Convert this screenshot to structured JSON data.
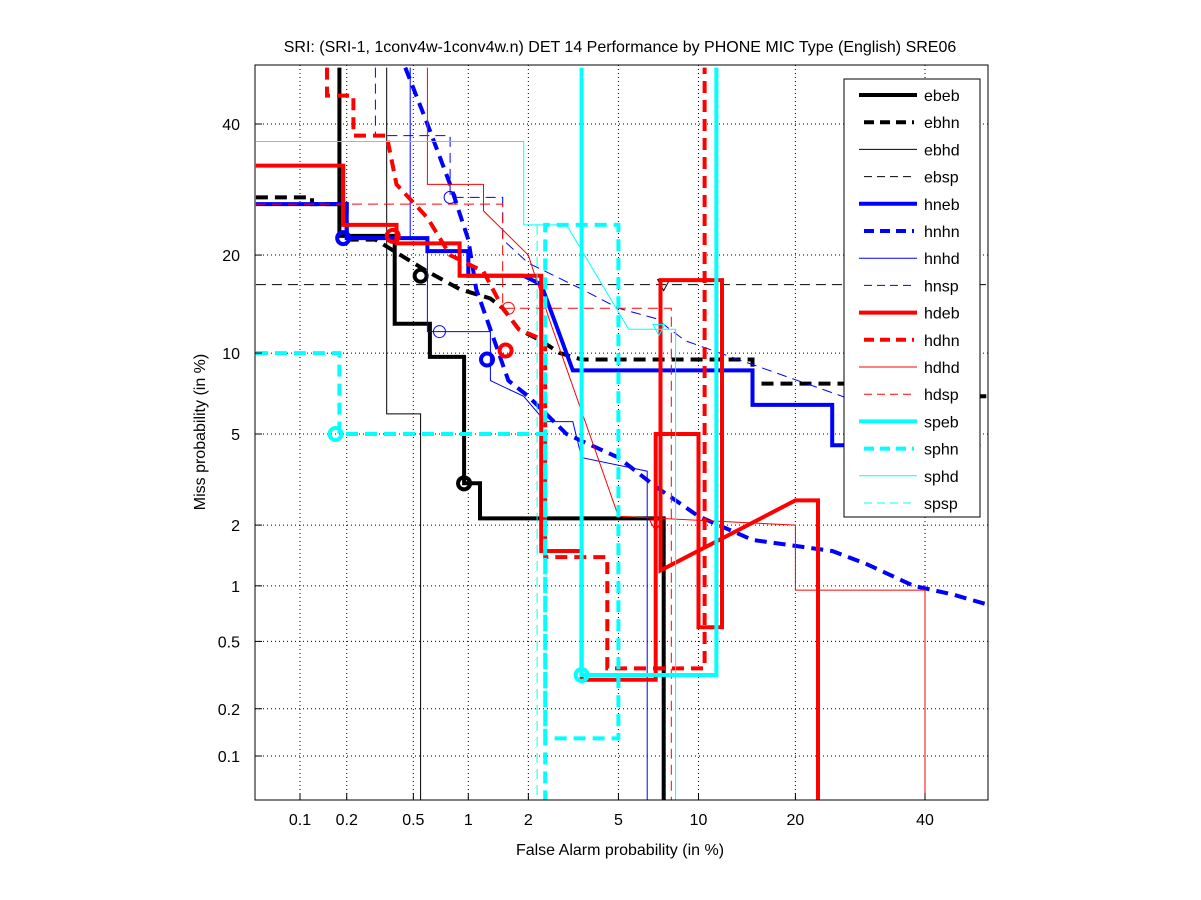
{
  "chart_data": {
    "type": "line",
    "title": "SRI: (SRI-1, 1conv4w-1conv4w.n) DET 14 Performance by PHONE MIC Type (English) SRE06",
    "xlabel": "False Alarm probability (in %)",
    "ylabel": "Miss probability (in %)",
    "xscale": "probit",
    "yscale": "probit",
    "xlim": [
      0.05,
      51
    ],
    "ylim": [
      0.05,
      50
    ],
    "xticks": [
      0.1,
      0.2,
      0.5,
      1,
      2,
      5,
      10,
      20,
      40
    ],
    "xtick_labels": [
      "0.1",
      "0.2",
      "0.5",
      "1",
      "2",
      "5",
      "10",
      "20",
      "40"
    ],
    "yticks": [
      0.1,
      0.2,
      0.5,
      1,
      2,
      5,
      10,
      20,
      40
    ],
    "ytick_labels": [
      "0.1",
      "0.2",
      "0.5",
      "1",
      "2",
      "5",
      "10",
      "20",
      "40"
    ],
    "grid": true,
    "legend_position": "top-right",
    "reference_line": {
      "miss": 16.5,
      "style": "dashed",
      "color": "#000000"
    },
    "series": [
      {
        "name": "ebeb",
        "color": "#000000",
        "style": "solid",
        "width": 4,
        "points": [
          [
            0.18,
            50
          ],
          [
            0.18,
            22.5
          ],
          [
            0.39,
            22.5
          ],
          [
            0.39,
            12.5
          ],
          [
            0.62,
            12.5
          ],
          [
            0.62,
            9.7
          ],
          [
            0.95,
            9.7
          ],
          [
            0.95,
            3.1
          ],
          [
            1.15,
            3.1
          ],
          [
            1.15,
            2.15
          ],
          [
            5.5,
            2.15
          ],
          [
            7.5,
            2.15
          ],
          [
            7.5,
            0.05
          ]
        ],
        "marker": [
          0.95,
          3.1
        ],
        "marker_style": "circle"
      },
      {
        "name": "ebhn",
        "color": "#000000",
        "style": "dashed",
        "width": 4,
        "points": [
          [
            0.05,
            28
          ],
          [
            0.12,
            28
          ],
          [
            0.12,
            27
          ],
          [
            0.2,
            27
          ],
          [
            0.2,
            22
          ],
          [
            0.3,
            22
          ],
          [
            0.6,
            18
          ],
          [
            0.9,
            16
          ],
          [
            1.3,
            15
          ],
          [
            1.5,
            14
          ],
          [
            1.8,
            12
          ],
          [
            2.3,
            11
          ],
          [
            2.8,
            10
          ],
          [
            3.5,
            9.5
          ],
          [
            10,
            9.5
          ],
          [
            15,
            9.5
          ],
          [
            15,
            7.8
          ],
          [
            45,
            7.8
          ],
          [
            45,
            7
          ],
          [
            51,
            7
          ]
        ],
        "marker": [
          0.55,
          17.5
        ],
        "marker_style": "circle"
      },
      {
        "name": "ebhd",
        "color": "#000000",
        "style": "solid",
        "width": 1,
        "points": [
          [
            0.35,
            50
          ],
          [
            0.35,
            6
          ],
          [
            0.55,
            6
          ],
          [
            0.55,
            0.05
          ]
        ]
      },
      {
        "name": "ebsp",
        "color": "#000000",
        "style": "dashed",
        "width": 1,
        "points": [
          [
            0.05,
            16.5
          ],
          [
            51,
            16.5
          ]
        ],
        "marker": [
          7.5,
          16.5
        ],
        "marker_style": "triangle"
      },
      {
        "name": "hneb",
        "color": "#0000ff",
        "style": "solid",
        "width": 4,
        "points": [
          [
            0.05,
            27
          ],
          [
            0.2,
            27
          ],
          [
            0.2,
            22.2
          ],
          [
            0.6,
            22.2
          ],
          [
            0.6,
            20.5
          ],
          [
            1.0,
            20.5
          ],
          [
            1.0,
            17.5
          ],
          [
            1.9,
            17.5
          ],
          [
            2.3,
            16.5
          ],
          [
            3.2,
            8.7
          ],
          [
            15,
            8.7
          ],
          [
            15,
            6.5
          ],
          [
            25,
            6.5
          ],
          [
            25,
            4.5
          ],
          [
            30,
            4.5
          ]
        ],
        "marker": [
          0.19,
          22.2
        ],
        "marker_style": "circle"
      },
      {
        "name": "hnhn",
        "color": "#0000ff",
        "style": "dashed",
        "width": 4,
        "points": [
          [
            0.45,
            50
          ],
          [
            0.6,
            40
          ],
          [
            0.8,
            30
          ],
          [
            1.0,
            22
          ],
          [
            1.1,
            16
          ],
          [
            1.3,
            12
          ],
          [
            1.6,
            8
          ],
          [
            2.0,
            7
          ],
          [
            3.0,
            5
          ],
          [
            5.0,
            4
          ],
          [
            7.0,
            3
          ],
          [
            10,
            2.2
          ],
          [
            15,
            1.7
          ],
          [
            25,
            1.5
          ],
          [
            30,
            1.3
          ],
          [
            38,
            1.0
          ],
          [
            45,
            0.9
          ],
          [
            51,
            0.8
          ]
        ],
        "marker": [
          1.25,
          9.5
        ],
        "marker_style": "circle"
      },
      {
        "name": "hnhd",
        "color": "#0000ff",
        "style": "solid",
        "width": 1,
        "points": [
          [
            0.48,
            50
          ],
          [
            0.48,
            22
          ],
          [
            0.6,
            22
          ],
          [
            0.6,
            11.8
          ],
          [
            1.0,
            11.8
          ],
          [
            1.3,
            11.8
          ],
          [
            1.3,
            8
          ],
          [
            1.9,
            7
          ],
          [
            2.4,
            5.6
          ],
          [
            3.2,
            5.6
          ],
          [
            3.5,
            4
          ],
          [
            6.5,
            3.5
          ],
          [
            6.5,
            0.05
          ]
        ],
        "marker": [
          0.7,
          11.8
        ],
        "marker_style": "circle"
      },
      {
        "name": "hnsp",
        "color": "#0000ff",
        "style": "dashed",
        "width": 1,
        "points": [
          [
            0.3,
            50
          ],
          [
            0.3,
            38
          ],
          [
            0.8,
            38
          ],
          [
            0.8,
            28
          ],
          [
            1.5,
            28
          ],
          [
            1.5,
            22
          ],
          [
            2.0,
            19
          ],
          [
            3.5,
            16
          ],
          [
            5,
            14
          ],
          [
            7,
            13
          ],
          [
            9,
            11
          ],
          [
            50,
            4.5
          ]
        ],
        "marker": [
          0.8,
          28
        ],
        "marker_style": "circle"
      },
      {
        "name": "hdeb",
        "color": "#ff0000",
        "style": "solid",
        "width": 4,
        "points": [
          [
            0.05,
            33
          ],
          [
            0.19,
            33
          ],
          [
            0.19,
            24
          ],
          [
            0.4,
            24
          ],
          [
            0.4,
            21.5
          ],
          [
            0.9,
            21.5
          ],
          [
            0.9,
            17.5
          ],
          [
            2.3,
            17.5
          ],
          [
            2.3,
            1.5
          ],
          [
            3.5,
            1.5
          ],
          [
            3.5,
            0.3
          ],
          [
            7.0,
            0.3
          ],
          [
            7.0,
            5
          ],
          [
            10,
            5
          ],
          [
            10,
            0.6
          ],
          [
            12,
            0.6
          ],
          [
            12,
            17
          ],
          [
            7.3,
            17
          ],
          [
            7.3,
            1.2
          ],
          [
            20,
            2.6
          ],
          [
            23,
            2.6
          ],
          [
            23,
            0.05
          ]
        ],
        "marker": [
          0.38,
          22.5
        ],
        "marker_style": "circle"
      },
      {
        "name": "hdhn",
        "color": "#ff0000",
        "style": "dashed",
        "width": 4,
        "points": [
          [
            0.15,
            50
          ],
          [
            0.15,
            45
          ],
          [
            0.22,
            45
          ],
          [
            0.22,
            38
          ],
          [
            0.35,
            38
          ],
          [
            0.4,
            30
          ],
          [
            0.6,
            25
          ],
          [
            0.8,
            20
          ],
          [
            1.2,
            18
          ],
          [
            1.5,
            14
          ],
          [
            1.8,
            12
          ],
          [
            2.4,
            11
          ],
          [
            2.4,
            1.4
          ],
          [
            4.5,
            1.4
          ],
          [
            4.5,
            0.35
          ],
          [
            10.5,
            0.35
          ],
          [
            10.5,
            50
          ]
        ],
        "marker": [
          1.55,
          10.2
        ],
        "marker_style": "circle"
      },
      {
        "name": "hdhd",
        "color": "#ff0000",
        "style": "solid",
        "width": 1,
        "points": [
          [
            0.6,
            50
          ],
          [
            0.6,
            30
          ],
          [
            1.2,
            30
          ],
          [
            1.2,
            26
          ],
          [
            2.0,
            20
          ],
          [
            2.5,
            13
          ],
          [
            5,
            2.2
          ],
          [
            20,
            2.0
          ],
          [
            20,
            0.95
          ],
          [
            40,
            0.95
          ],
          [
            40,
            0.05
          ]
        ],
        "marker": [
          7.0,
          2.0
        ],
        "marker_style": "triangle"
      },
      {
        "name": "hdsp",
        "color": "#ff0000",
        "style": "dashed",
        "width": 1,
        "points": [
          [
            0.05,
            27
          ],
          [
            1.5,
            27
          ],
          [
            1.5,
            14
          ],
          [
            3.0,
            14
          ],
          [
            8,
            14
          ],
          [
            8,
            5
          ],
          [
            8,
            0.05
          ]
        ],
        "marker": [
          1.6,
          14
        ],
        "marker_style": "circle"
      },
      {
        "name": "speb",
        "color": "#00ffff",
        "style": "solid",
        "width": 4,
        "points": [
          [
            3.5,
            50
          ],
          [
            3.5,
            0.32
          ],
          [
            11.5,
            0.32
          ],
          [
            11.5,
            50
          ]
        ],
        "marker": [
          3.5,
          0.32
        ],
        "marker_style": "circle"
      },
      {
        "name": "sphn",
        "color": "#00ffff",
        "style": "dashed",
        "width": 4,
        "points": [
          [
            0.05,
            10
          ],
          [
            0.18,
            10
          ],
          [
            0.18,
            5
          ],
          [
            2.4,
            5
          ],
          [
            2.4,
            0.13
          ],
          [
            5,
            0.13
          ],
          [
            5,
            24
          ],
          [
            2.4,
            24
          ],
          [
            2.4,
            0.05
          ]
        ],
        "marker": [
          0.17,
          5
        ],
        "marker_style": "circle"
      },
      {
        "name": "sphd",
        "color": "#00ffff",
        "style": "solid",
        "width": 1,
        "points": [
          [
            0.05,
            37
          ],
          [
            1.9,
            37
          ],
          [
            1.9,
            24
          ],
          [
            3.0,
            24
          ],
          [
            5.5,
            12
          ],
          [
            8.3,
            12
          ],
          [
            8.3,
            0.05
          ]
        ],
        "marker": [
          7.2,
          12
        ],
        "marker_style": "triangle"
      },
      {
        "name": "spsp",
        "color": "#00ffff",
        "style": "dashed",
        "width": 1,
        "points": [
          [
            2.2,
            24
          ],
          [
            2.2,
            0.05
          ]
        ]
      }
    ]
  }
}
